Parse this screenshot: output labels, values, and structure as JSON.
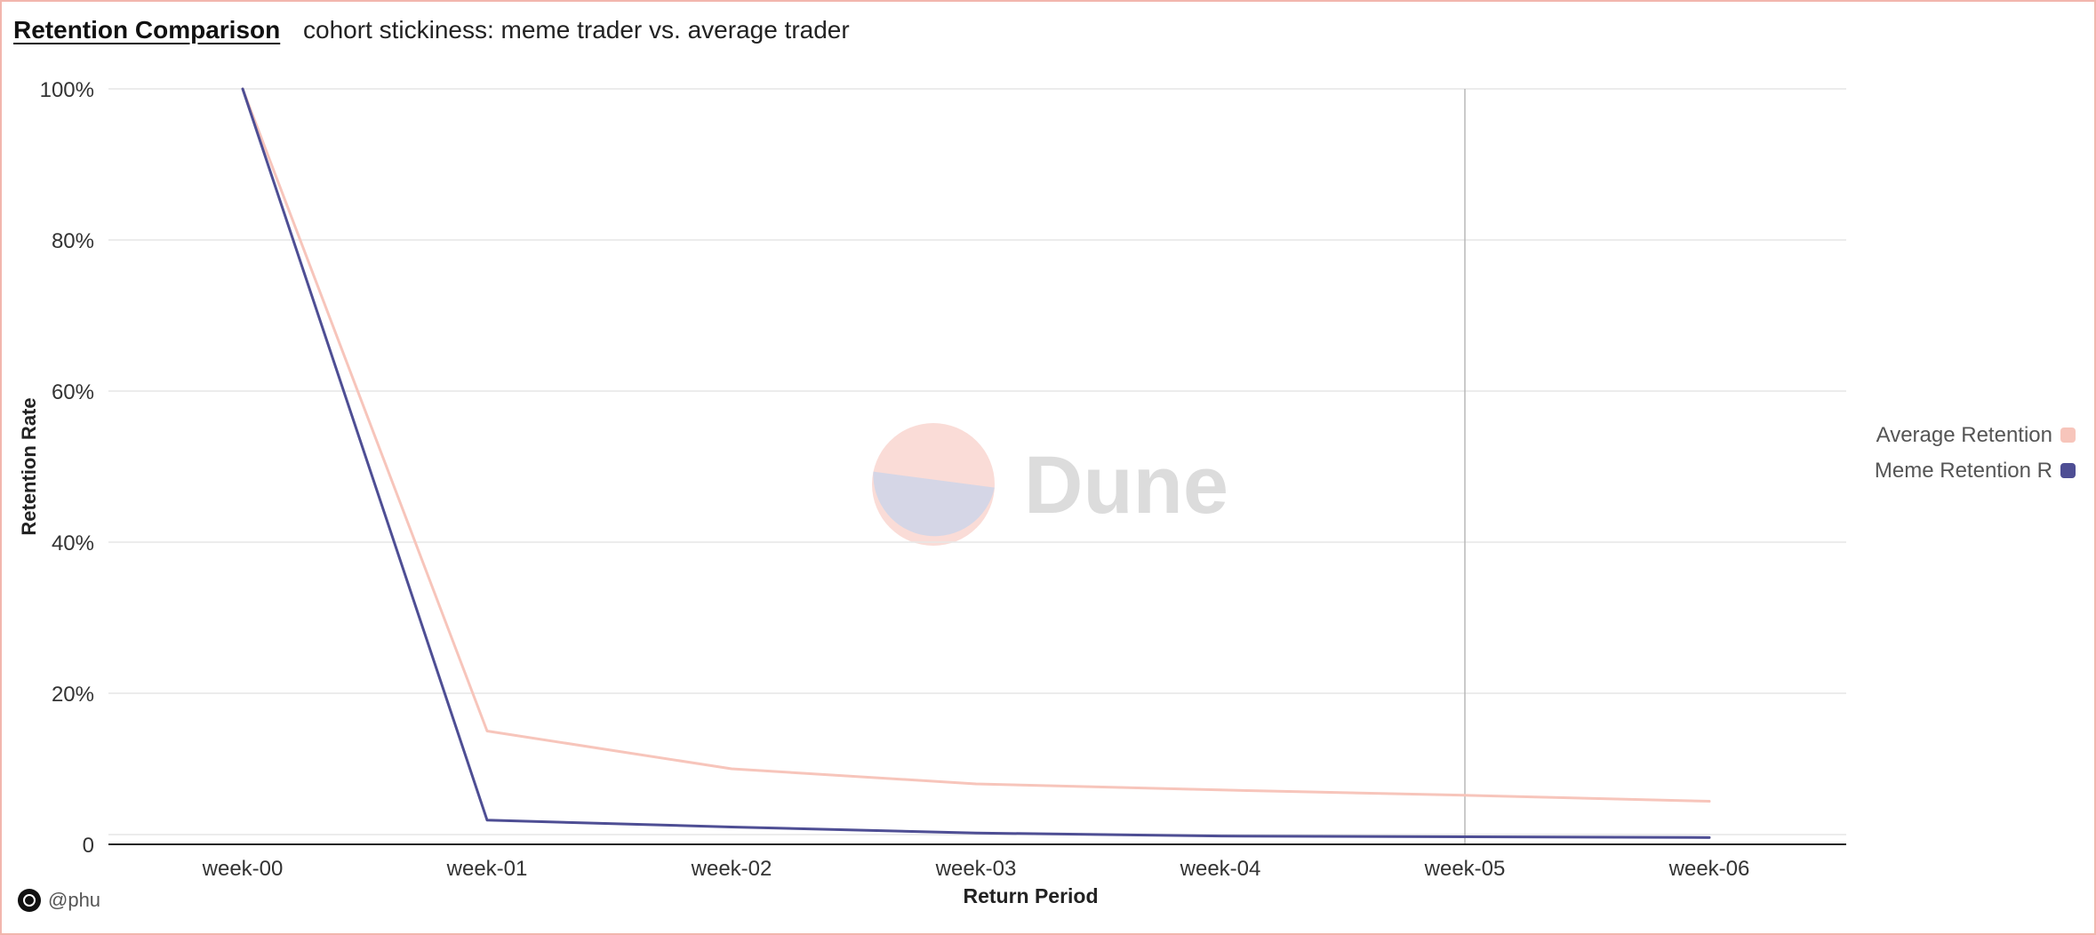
{
  "header": {
    "title": "Retention Comparison",
    "subtitle": "cohort stickiness: meme trader vs. average trader"
  },
  "watermark": {
    "text": "Dune",
    "colors": [
      "#fadcd7",
      "#d5d6e6"
    ]
  },
  "footer": {
    "author": "@phu"
  },
  "colors": {
    "average": "#f7c5bb",
    "meme": "#4e4e94",
    "grid": "#e6e6e6",
    "axis": "#222222",
    "crosshair": "#b8b8b8"
  },
  "chart_data": {
    "type": "line",
    "title": "",
    "xlabel": "Return Period",
    "ylabel": "Retention Rate",
    "categories": [
      "week-00",
      "week-01",
      "week-02",
      "week-03",
      "week-04",
      "week-05",
      "week-06"
    ],
    "yticks": [
      "0",
      "20%",
      "40%",
      "60%",
      "80%",
      "100%"
    ],
    "ytick_values": [
      0,
      20,
      40,
      60,
      80,
      100
    ],
    "ylim": [
      0,
      100
    ],
    "grid": true,
    "legend_position": "right",
    "crosshair_category": "week-05",
    "series": [
      {
        "name": "Average Retention",
        "color": "#f7c5bb",
        "values": [
          100,
          15,
          10,
          8,
          7.2,
          6.5,
          5.7
        ]
      },
      {
        "name": "Meme Retention R",
        "color": "#4e4e94",
        "values": [
          100,
          3.2,
          2.3,
          1.5,
          1.1,
          1.0,
          0.9
        ]
      }
    ]
  }
}
